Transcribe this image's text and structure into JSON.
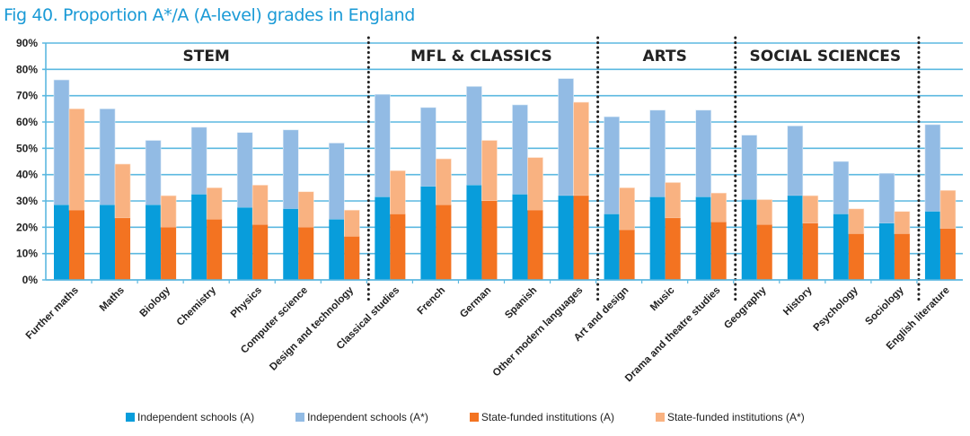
{
  "title": "Fig 40. Proportion A*/A (A-level) grades in England",
  "colors": {
    "independent_a": "#089ddb",
    "independent_astar": "#92bbe4",
    "state_a": "#f37321",
    "state_astar": "#f9b281",
    "grid": "#5bb8e0",
    "divider": "#222222"
  },
  "chart_data": {
    "type": "bar",
    "title": "Fig 40. Proportion A*/A (A-level) grades in England",
    "xlabel": "",
    "ylabel": "",
    "ylim": [
      0,
      90
    ],
    "yticks": [
      "0%",
      "10%",
      "20%",
      "30%",
      "40%",
      "50%",
      "60%",
      "70%",
      "80%",
      "90%"
    ],
    "grid": true,
    "legend_position": "bottom",
    "categories": [
      "Further maths",
      "Maths",
      "Biology",
      "Chemistry",
      "Physics",
      "Computer science",
      "Design and technology",
      "Classical studies",
      "French",
      "German",
      "Spanish",
      "Other modern languages",
      "Art and design",
      "Music",
      "Drama and theatre studies",
      "Geography",
      "History",
      "Psychology",
      "Sociology",
      "English literature"
    ],
    "groups": [
      {
        "label": "STEM",
        "start": 0,
        "end": 6
      },
      {
        "label": "MFL & CLASSICS",
        "start": 7,
        "end": 11
      },
      {
        "label": "ARTS",
        "start": 12,
        "end": 14
      },
      {
        "label": "SOCIAL SCIENCES",
        "start": 15,
        "end": 18
      },
      {
        "label": "",
        "start": 19,
        "end": 19
      }
    ],
    "series": [
      {
        "name": "Independent schools (A)",
        "key": "independent_a",
        "values": [
          28.5,
          28.5,
          28.5,
          32.5,
          27.5,
          27,
          23,
          31.5,
          35.5,
          36,
          32.5,
          32,
          25,
          31.5,
          31.5,
          30.5,
          32,
          25,
          21.5,
          26
        ]
      },
      {
        "name": "Independent schools (A*)",
        "key": "independent_astar",
        "values": [
          47.5,
          36.5,
          24.5,
          25.5,
          28.5,
          30,
          29,
          39,
          30,
          37.5,
          34,
          44.5,
          37,
          33,
          33,
          24.5,
          26.5,
          20,
          19,
          33
        ]
      },
      {
        "name": "State-funded institutions (A)",
        "key": "state_a",
        "values": [
          26.5,
          23.5,
          20,
          23,
          21,
          20,
          16.5,
          25,
          28.5,
          30,
          26.5,
          32,
          19,
          23.5,
          22,
          21,
          21.5,
          17.5,
          17.5,
          19.5
        ]
      },
      {
        "name": "State-funded institutions (A*)",
        "key": "state_astar",
        "values": [
          38.5,
          20.5,
          12,
          12,
          15,
          13.5,
          10,
          16.5,
          17.5,
          23,
          20,
          35.5,
          16,
          13.5,
          11,
          9.5,
          10.5,
          9.5,
          8.5,
          14.5
        ]
      }
    ]
  }
}
